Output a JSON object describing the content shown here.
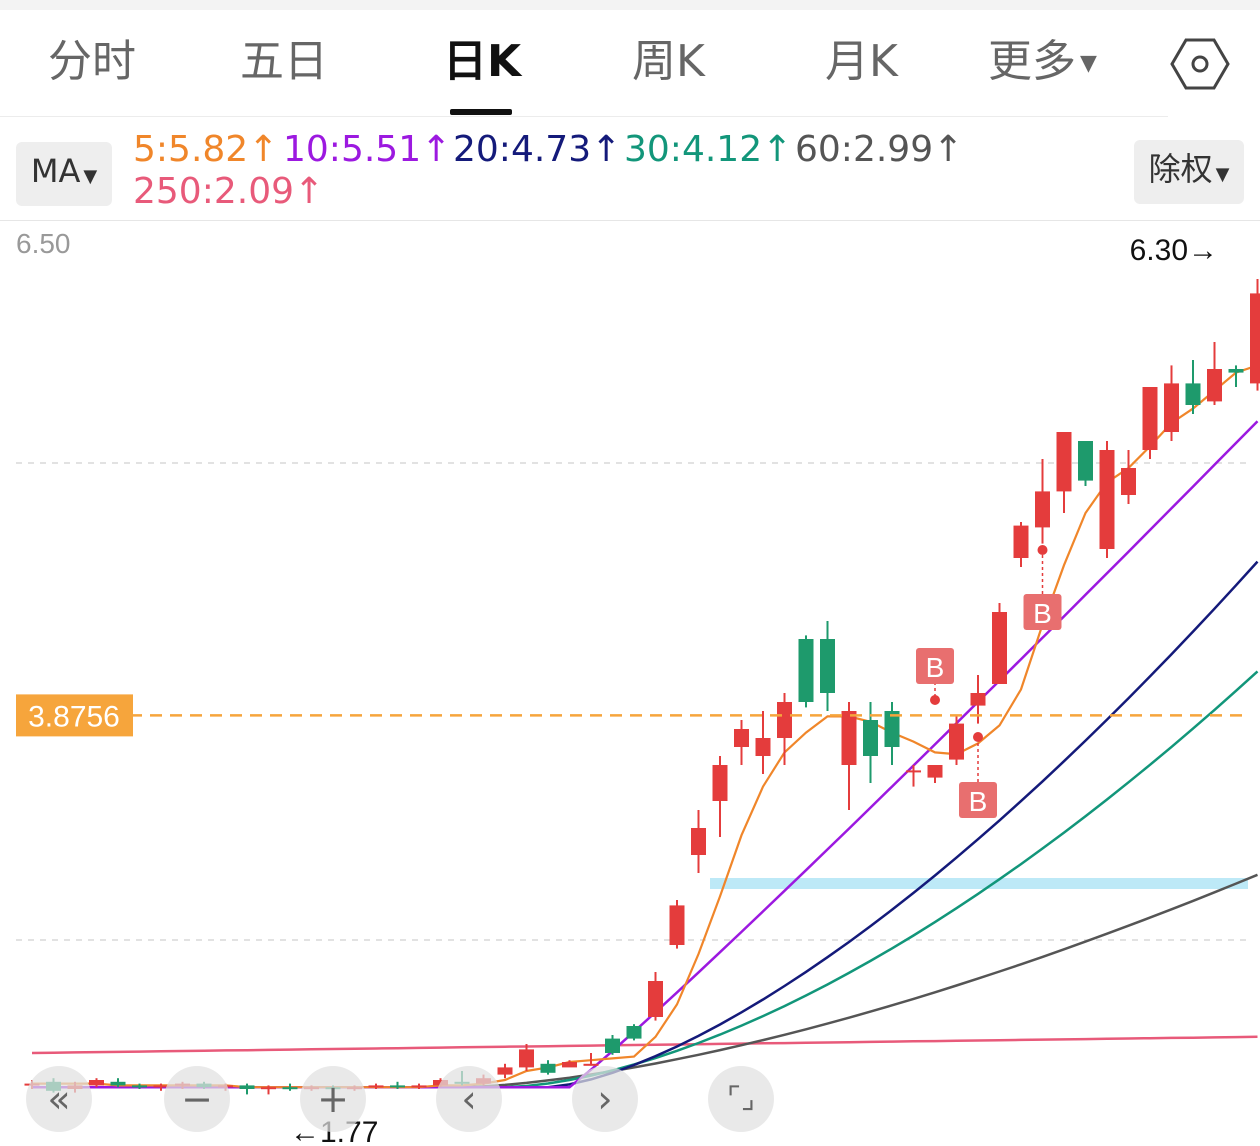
{
  "tabs": [
    {
      "label": "分时"
    },
    {
      "label": "五日"
    },
    {
      "label": "日K"
    },
    {
      "label": "周K"
    },
    {
      "label": "月K"
    },
    {
      "label": "更多"
    }
  ],
  "active_tab": "日K",
  "indicator": {
    "selector_label": "MA",
    "adjust_label": "除权",
    "ma": [
      {
        "text": "5:5.82↑",
        "color": "#f0862a"
      },
      {
        "text": "10:5.51↑",
        "color": "#9c19e0"
      },
      {
        "text": "20:4.73↑",
        "color": "#141a7a"
      },
      {
        "text": "30:4.12↑",
        "color": "#12967a"
      },
      {
        "text": "60:2.99↑",
        "color": "#555555"
      },
      {
        "text": "250:2.09↑",
        "color": "#e85a7a"
      }
    ]
  },
  "price_axis": {
    "top_label": "6.50"
  },
  "markers": {
    "high_label": "6.30→",
    "low_label": "←1.77",
    "crosshair_price": "3.8756",
    "buy_label": "B"
  },
  "colors": {
    "up": "#e43c3c",
    "down": "#1e9a6c",
    "crosshair": "#f6a53c",
    "support": "#bde9f7"
  },
  "chart_data": {
    "type": "candlestick",
    "y_range_visible": [
      1.6,
      6.5
    ],
    "candles": [
      [
        1.82,
        1.83,
        1.85,
        1.8
      ],
      [
        1.84,
        1.79,
        1.86,
        1.78
      ],
      [
        1.8,
        1.82,
        1.84,
        1.78
      ],
      [
        1.82,
        1.85,
        1.86,
        1.81
      ],
      [
        1.84,
        1.82,
        1.86,
        1.81
      ],
      [
        1.82,
        1.81,
        1.83,
        1.8
      ],
      [
        1.81,
        1.82,
        1.83,
        1.79
      ],
      [
        1.82,
        1.83,
        1.84,
        1.8
      ],
      [
        1.83,
        1.81,
        1.84,
        1.8
      ],
      [
        1.81,
        1.82,
        1.83,
        1.79
      ],
      [
        1.82,
        1.8,
        1.83,
        1.77
      ],
      [
        1.8,
        1.81,
        1.82,
        1.77
      ],
      [
        1.81,
        1.8,
        1.83,
        1.79
      ],
      [
        1.8,
        1.81,
        1.82,
        1.79
      ],
      [
        1.81,
        1.8,
        1.82,
        1.79
      ],
      [
        1.8,
        1.81,
        1.82,
        1.79
      ],
      [
        1.81,
        1.82,
        1.83,
        1.8
      ],
      [
        1.82,
        1.81,
        1.84,
        1.8
      ],
      [
        1.81,
        1.82,
        1.83,
        1.8
      ],
      [
        1.82,
        1.85,
        1.86,
        1.81
      ],
      [
        1.84,
        1.83,
        1.9,
        1.82
      ],
      [
        1.83,
        1.86,
        1.88,
        1.82
      ],
      [
        1.88,
        1.92,
        1.94,
        1.86
      ],
      [
        1.92,
        2.02,
        2.05,
        1.9
      ],
      [
        1.94,
        1.89,
        1.96,
        1.88
      ],
      [
        1.92,
        1.95,
        1.96,
        1.93
      ],
      [
        1.94,
        1.94,
        2.0,
        1.93
      ],
      [
        2.08,
        2.0,
        2.1,
        1.99
      ],
      [
        2.15,
        2.08,
        2.16,
        2.07
      ],
      [
        2.2,
        2.4,
        2.45,
        2.18
      ],
      [
        2.6,
        2.82,
        2.85,
        2.58
      ],
      [
        3.1,
        3.25,
        3.35,
        3.0
      ],
      [
        3.4,
        3.6,
        3.65,
        3.2
      ],
      [
        3.7,
        3.8,
        3.85,
        3.6
      ],
      [
        3.65,
        3.75,
        3.9,
        3.55
      ],
      [
        3.75,
        3.95,
        4.0,
        3.6
      ],
      [
        4.3,
        3.95,
        4.32,
        3.92
      ],
      [
        4.3,
        4.0,
        4.4,
        3.9
      ],
      [
        3.6,
        3.9,
        3.95,
        3.35
      ],
      [
        3.85,
        3.65,
        3.95,
        3.5
      ],
      [
        3.9,
        3.7,
        3.95,
        3.6
      ],
      [
        3.57,
        3.57,
        3.6,
        3.48
      ],
      [
        3.53,
        3.6,
        3.6,
        3.5
      ],
      [
        3.63,
        3.83,
        3.88,
        3.6
      ],
      [
        3.93,
        4.0,
        4.1,
        3.83
      ],
      [
        4.05,
        4.45,
        4.5,
        4.05
      ],
      [
        4.75,
        4.93,
        4.95,
        4.7
      ],
      [
        4.92,
        5.12,
        5.3,
        4.83
      ],
      [
        5.12,
        5.45,
        5.45,
        5.0
      ],
      [
        5.4,
        5.18,
        5.4,
        5.15
      ],
      [
        4.8,
        5.35,
        5.4,
        4.75
      ],
      [
        5.1,
        5.25,
        5.35,
        5.05
      ],
      [
        5.35,
        5.7,
        5.7,
        5.3
      ],
      [
        5.45,
        5.72,
        5.82,
        5.4
      ],
      [
        5.72,
        5.6,
        5.85,
        5.55
      ],
      [
        5.62,
        5.8,
        5.95,
        5.6
      ],
      [
        5.8,
        5.78,
        5.82,
        5.7
      ],
      [
        5.72,
        6.22,
        6.3,
        5.68
      ]
    ],
    "ma5_values": [
      1.83,
      1.83,
      1.83,
      1.83,
      1.82,
      1.82,
      1.82,
      1.82,
      1.82,
      1.82,
      1.81,
      1.81,
      1.81,
      1.81,
      1.81,
      1.81,
      1.81,
      1.81,
      1.81,
      1.82,
      1.82,
      1.83,
      1.85,
      1.9,
      1.92,
      1.95,
      1.96,
      1.97,
      1.98,
      2.09,
      2.27,
      2.55,
      2.87,
      3.21,
      3.48,
      3.67,
      3.78,
      3.87,
      3.87,
      3.84,
      3.78,
      3.73,
      3.67,
      3.66,
      3.72,
      3.82,
      4.02,
      4.38,
      4.71,
      5.0,
      5.17,
      5.25,
      5.37,
      5.5,
      5.58,
      5.68,
      5.78,
      5.82
    ]
  }
}
